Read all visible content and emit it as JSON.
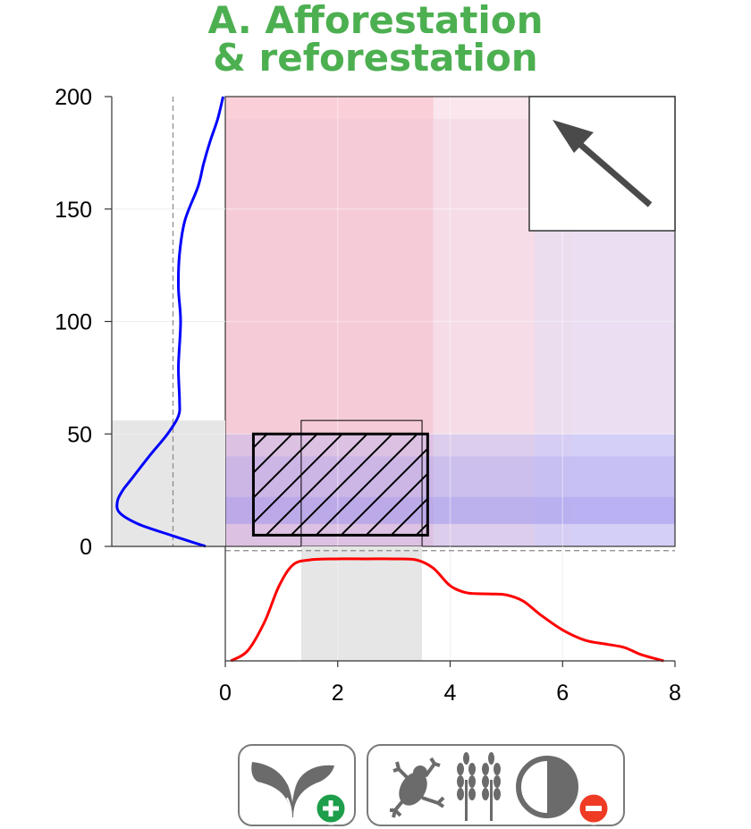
{
  "title": {
    "line1": "A. Afforestation",
    "line2": "& reforestation",
    "color": "#4caf50"
  },
  "chart_data": {
    "type": "heatmap",
    "title": "A. Afforestation & reforestation",
    "xlabel": "",
    "ylabel": "",
    "xlim": [
      0,
      8
    ],
    "ylim": [
      0,
      200
    ],
    "x_ticks": [
      "0",
      "2",
      "4",
      "6",
      "8"
    ],
    "y_ticks": [
      "0",
      "50",
      "100",
      "150",
      "200"
    ],
    "grid": true,
    "ranges_x": [
      {
        "x0": 0,
        "x1": 3.7,
        "color": "#f5a8b8",
        "opacity": 0.55
      },
      {
        "x0": 3.7,
        "x1": 5.5,
        "color": "#f0b8c8",
        "opacity": 0.35
      },
      {
        "x0": 5.5,
        "x1": 6.15,
        "color": "#d8c8ec",
        "opacity": 0.45
      },
      {
        "x0": 6.15,
        "x1": 8,
        "color": "#d0c8f4",
        "opacity": 0.4
      }
    ],
    "ranges_y": [
      {
        "y0": 0,
        "y1": 50,
        "color": "#b8b0f0",
        "opacity": 0.45
      },
      {
        "y0": 10,
        "y1": 40,
        "color": "#a8a0f0",
        "opacity": 0.3
      },
      {
        "y0": 10,
        "y1": 22,
        "color": "#9890f0",
        "opacity": 0.3
      },
      {
        "y0": 50,
        "y1": 190,
        "color": "#e8c0d8",
        "opacity": 0.25
      }
    ],
    "hatched_box": {
      "x0": 0.5,
      "x1": 3.6,
      "y0": 5,
      "y1": 50
    },
    "thin_box": {
      "x0": 1.35,
      "x1": 3.5,
      "y0": 0,
      "y1": 56
    },
    "direction_arrow": "up-left",
    "top_density": {
      "color": "#ff0000",
      "x": [
        0.1,
        0.4,
        0.7,
        0.95,
        1.2,
        1.5,
        2.0,
        2.5,
        3.0,
        3.4,
        3.7,
        4.0,
        4.3,
        4.7,
        5.0,
        5.3,
        5.6,
        6.0,
        6.4,
        6.8,
        7.1,
        7.4,
        7.8
      ],
      "y": [
        0.0,
        0.1,
        0.38,
        0.72,
        0.93,
        0.98,
        0.99,
        0.99,
        0.99,
        0.98,
        0.9,
        0.73,
        0.66,
        0.65,
        0.64,
        0.58,
        0.45,
        0.3,
        0.2,
        0.16,
        0.13,
        0.06,
        0.0
      ],
      "highlight_x": [
        1.35,
        3.5
      ],
      "reference_y": 1.07
    },
    "left_density": {
      "color": "#0000ff",
      "y": [
        0,
        5,
        10,
        15,
        20,
        25,
        30,
        40,
        50,
        58,
        65,
        80,
        100,
        115,
        130,
        145,
        160,
        170,
        180,
        190,
        200
      ],
      "v": [
        0.18,
        0.5,
        0.8,
        0.97,
        0.99,
        0.94,
        0.86,
        0.7,
        0.53,
        0.43,
        0.42,
        0.43,
        0.41,
        0.43,
        0.42,
        0.37,
        0.25,
        0.2,
        0.14,
        0.07,
        0.02
      ],
      "highlight_y": [
        0,
        56
      ],
      "reference_v": 0.48
    }
  },
  "icons": {
    "left_badge": [
      "leaves-icon",
      "plus-badge-icon"
    ],
    "right_badge": [
      "frog-icon",
      "wheat-icon",
      "half-circle-icon",
      "minus-badge-icon"
    ],
    "plus_color": "#1e9e4a",
    "minus_color": "#ef3b24",
    "icon_color": "#6b6b6b"
  }
}
